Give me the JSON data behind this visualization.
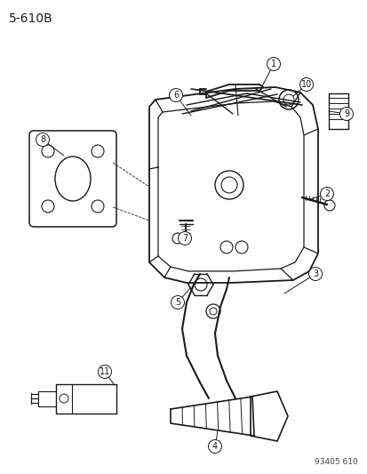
{
  "title": "5-610B",
  "footer": "93405 610",
  "bg_color": "#ffffff",
  "line_color": "#1a1a1a",
  "title_fontsize": 10,
  "footer_fontsize": 6.5,
  "label_fontsize": 7,
  "label_circle_r": 7.5
}
